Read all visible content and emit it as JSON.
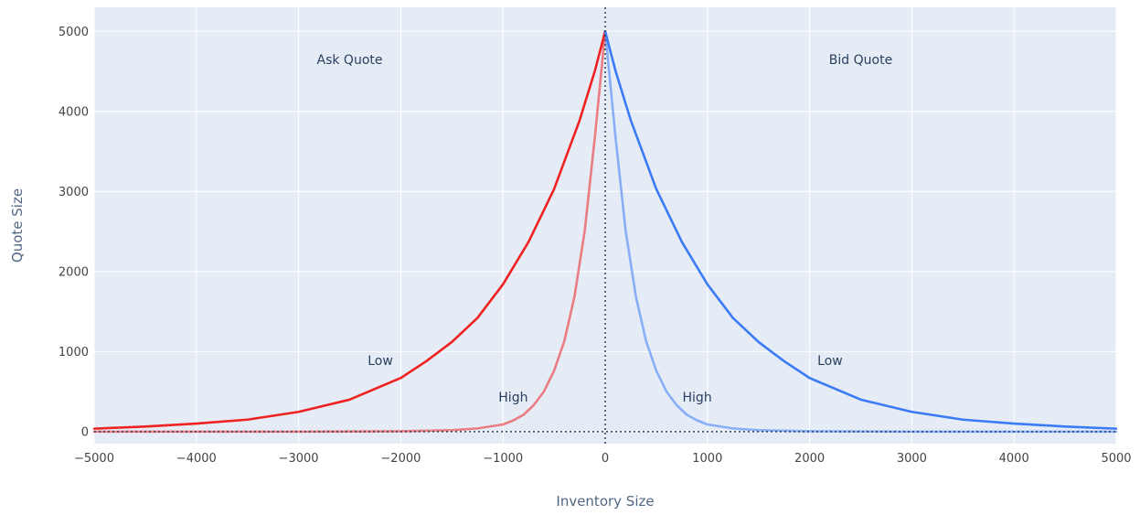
{
  "chart_data": {
    "type": "line",
    "title": "",
    "xlabel": "Inventory Size",
    "ylabel": "Quote Size",
    "xlim": [
      -5000,
      5000
    ],
    "ylim": [
      -150,
      5300
    ],
    "x_ticks": [
      -5000,
      -4000,
      -3000,
      -2000,
      -1000,
      0,
      1000,
      2000,
      3000,
      4000,
      5000
    ],
    "x_tick_labels": [
      "−5000",
      "−4000",
      "−3000",
      "−2000",
      "−1000",
      "0",
      "1000",
      "2000",
      "3000",
      "4000",
      "5000"
    ],
    "y_ticks": [
      0,
      1000,
      2000,
      3000,
      4000,
      5000
    ],
    "y_tick_labels": [
      "0",
      "1000",
      "2000",
      "3000",
      "4000",
      "5000"
    ],
    "grid": true,
    "background": "#e5ecf6",
    "reference_lines": [
      {
        "orientation": "vertical",
        "value": 0,
        "style": "dotted",
        "color": "#2a3f5f"
      },
      {
        "orientation": "horizontal",
        "value": 0,
        "style": "dotted",
        "color": "#2a3f5f"
      }
    ],
    "series": [
      {
        "color": "#ef2222",
        "opacity": 1.0,
        "x": [
          -5000,
          -4500,
          -4000,
          -3500,
          -3000,
          -2500,
          -2000,
          -1750,
          -1500,
          -1250,
          -1000,
          -750,
          -500,
          -250,
          -100,
          0
        ],
        "y": [
          37,
          64,
          101,
          150,
          247,
          400,
          670,
          880,
          1120,
          1420,
          1840,
          2370,
          3030,
          3890,
          4510,
          5000
        ]
      },
      {
        "color": "#ef2222",
        "opacity": 0.55,
        "x": [
          -5000,
          -3000,
          -2000,
          -1500,
          -1250,
          -1000,
          -900,
          -800,
          -700,
          -600,
          -500,
          -400,
          -300,
          -200,
          -100,
          0
        ],
        "y": [
          0,
          0,
          5,
          18,
          40,
          90,
          140,
          210,
          330,
          500,
          760,
          1130,
          1690,
          2510,
          3690,
          5000
        ]
      },
      {
        "color": "#3b7bf5",
        "opacity": 1.0,
        "x": [
          0,
          100,
          250,
          500,
          750,
          1000,
          1250,
          1500,
          1750,
          2000,
          2500,
          3000,
          3500,
          4000,
          4500,
          5000
        ],
        "y": [
          5000,
          4510,
          3890,
          3030,
          2370,
          1840,
          1420,
          1120,
          880,
          670,
          400,
          247,
          150,
          101,
          64,
          37
        ]
      },
      {
        "color": "#3b7bf5",
        "opacity": 0.55,
        "x": [
          0,
          100,
          200,
          300,
          400,
          500,
          600,
          700,
          800,
          900,
          1000,
          1250,
          1500,
          2000,
          3000,
          5000
        ],
        "y": [
          5000,
          3690,
          2510,
          1690,
          1130,
          760,
          500,
          330,
          210,
          140,
          90,
          40,
          18,
          5,
          0,
          0
        ]
      }
    ],
    "annotations": [
      {
        "text": "Ask Quote",
        "x": -2500,
        "y": 4650
      },
      {
        "text": "Bid Quote",
        "x": 2500,
        "y": 4650
      },
      {
        "text": "Low",
        "x": -2200,
        "y": 890
      },
      {
        "text": "High",
        "x": -900,
        "y": 430
      },
      {
        "text": "High",
        "x": 900,
        "y": 430
      },
      {
        "text": "Low",
        "x": 2200,
        "y": 890
      }
    ]
  }
}
